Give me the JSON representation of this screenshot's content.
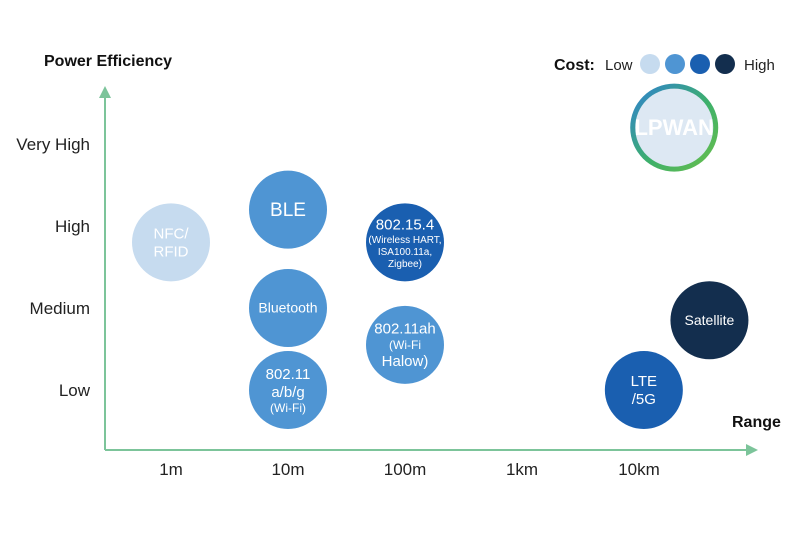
{
  "chart_data": {
    "type": "scatter",
    "xlabel": "Range",
    "ylabel": "Power Efficiency",
    "x_ticks": [
      "1m",
      "10m",
      "100m",
      "1km",
      "10km"
    ],
    "y_ticks": [
      "Low",
      "Medium",
      "High",
      "Very High"
    ],
    "legend": {
      "title": "Cost:",
      "low_label": "Low",
      "high_label": "High",
      "levels": [
        "#c6dbef",
        "#4f95d3",
        "#1a5fb0",
        "#132e4e"
      ],
      "placement": "top-right"
    },
    "points": [
      {
        "lines": [
          "NFC/",
          "RFID"
        ],
        "x": 1,
        "y": 2.8,
        "cost": 0
      },
      {
        "lines": [
          "BLE"
        ],
        "x": 10,
        "y": 3.2,
        "cost": 1
      },
      {
        "lines": [
          "Bluetooth"
        ],
        "x": 10,
        "y": 2.0,
        "cost": 1
      },
      {
        "lines": [
          "802.11",
          "a/b/g",
          "(Wi-Fi)"
        ],
        "x": 10,
        "y": 1.0,
        "cost": 1
      },
      {
        "lines": [
          "802.15.4",
          "(Wireless HART,",
          "ISA100.11a,",
          "Zigbee)"
        ],
        "x": 100,
        "y": 2.8,
        "cost": 2
      },
      {
        "lines": [
          "802.11ah",
          "(Wi-Fi",
          "Halow)"
        ],
        "x": 100,
        "y": 1.55,
        "cost": 1
      },
      {
        "lines": [
          "LPWAN"
        ],
        "x": 20,
        "y": 4.2,
        "cost": 0,
        "xunit": "km",
        "highlight": true
      },
      {
        "lines": [
          "Satellite"
        ],
        "x": 40,
        "y": 1.85,
        "cost": 3,
        "xunit": "km"
      },
      {
        "lines": [
          "LTE",
          "/5G"
        ],
        "x": 11,
        "y": 1.0,
        "cost": 2,
        "xunit": "km"
      }
    ]
  }
}
